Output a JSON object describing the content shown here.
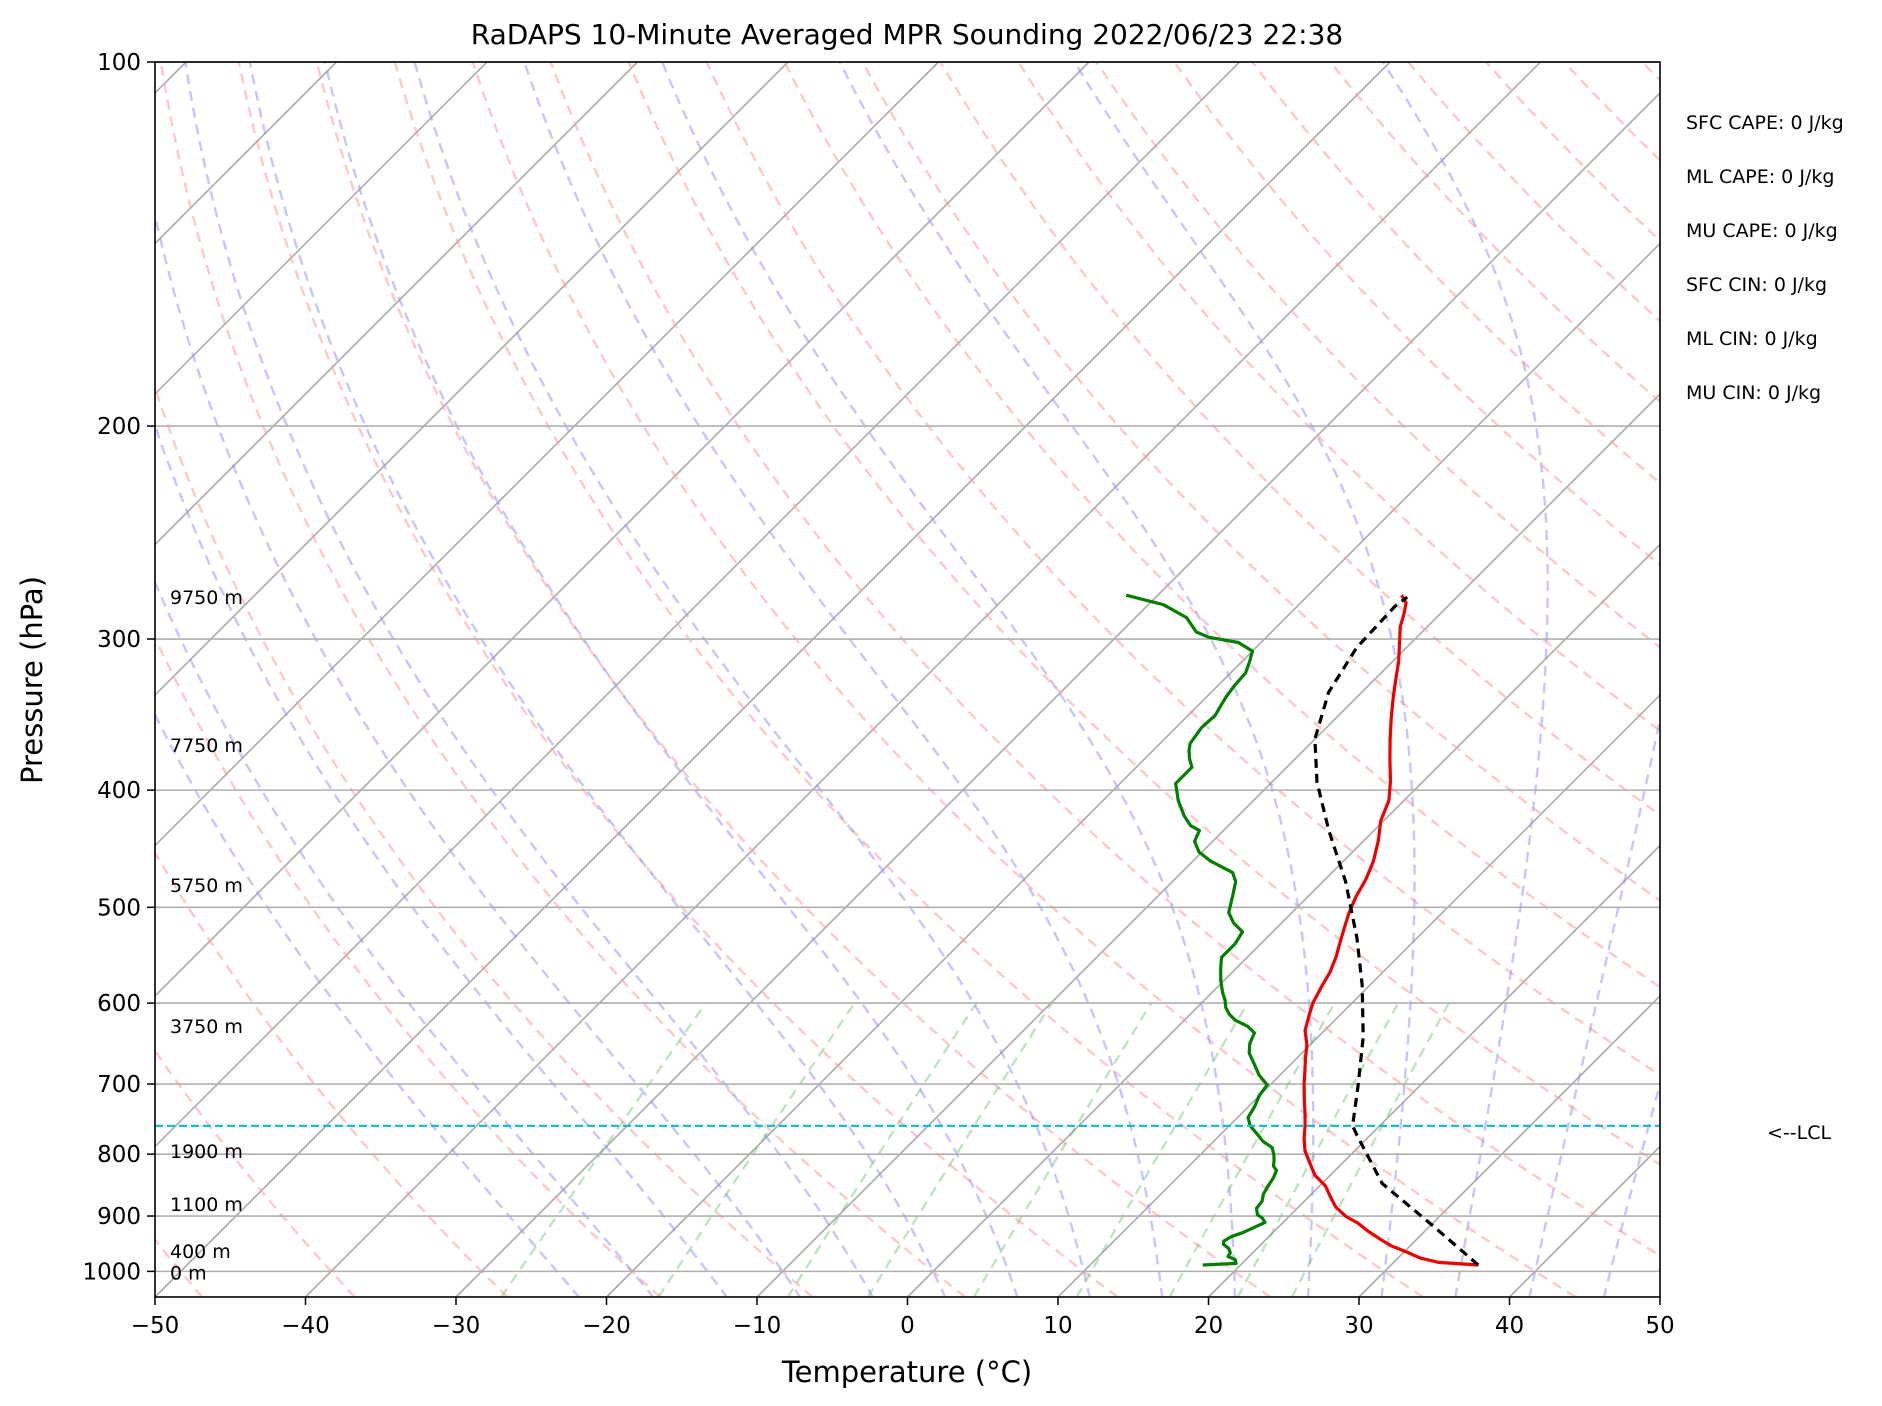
{
  "chart_data": {
    "type": "line",
    "title": "RaDAPS 10-Minute Averaged MPR Sounding 2022/06/23 22:38",
    "xlabel": "Temperature (°C)",
    "ylabel": "Pressure (hPa)",
    "xlim": [
      -50,
      50
    ],
    "ylim": [
      1050,
      100
    ],
    "y_scale": "log",
    "skew": "skew-T",
    "grid": true,
    "x_ticks": [
      "−50",
      "−40",
      "−30",
      "−20",
      "−10",
      "0",
      "10",
      "20",
      "30",
      "40",
      "50"
    ],
    "y_ticks": [
      {
        "p": 100,
        "label": "100"
      },
      {
        "p": 200,
        "label": "200"
      },
      {
        "p": 300,
        "label": "300"
      },
      {
        "p": 400,
        "label": "400"
      },
      {
        "p": 500,
        "label": "500"
      },
      {
        "p": 600,
        "label": "600"
      },
      {
        "p": 700,
        "label": "700"
      },
      {
        "p": 800,
        "label": "800"
      },
      {
        "p": 900,
        "label": "900"
      },
      {
        "p": 1000,
        "label": "1000"
      }
    ],
    "height_labels": [
      {
        "p": 277,
        "label": "9750 m"
      },
      {
        "p": 367,
        "label": "7750 m"
      },
      {
        "p": 479,
        "label": "5750 m"
      },
      {
        "p": 627,
        "label": "3750 m"
      },
      {
        "p": 795,
        "label": "1900 m"
      },
      {
        "p": 880,
        "label": "1100 m"
      },
      {
        "p": 962,
        "label": "400 m"
      },
      {
        "p": 1002,
        "label": "0 m"
      }
    ],
    "lcl": {
      "p": 758,
      "label": "<--LCL"
    },
    "stats": [
      {
        "label": "SFC CAPE: 0 J/kg"
      },
      {
        "label": "ML CAPE: 0 J/kg"
      },
      {
        "label": "MU CAPE: 0 J/kg"
      },
      {
        "label": "SFC CIN: 0 J/kg"
      },
      {
        "label": "ML CIN: 0 J/kg"
      },
      {
        "label": "MU CIN: 0 J/kg"
      }
    ],
    "series": [
      {
        "color": "#ee0000",
        "points": [
          [
            35.8,
            988
          ],
          [
            33.0,
            983
          ],
          [
            31.5,
            975
          ],
          [
            30.2,
            964
          ],
          [
            28.8,
            953
          ],
          [
            27.8,
            943
          ],
          [
            26.2,
            926
          ],
          [
            25.0,
            912
          ],
          [
            23.8,
            901
          ],
          [
            22.5,
            885
          ],
          [
            21.4,
            867
          ],
          [
            20.4,
            850
          ],
          [
            19.0,
            833
          ],
          [
            17.8,
            813
          ],
          [
            16.7,
            795
          ],
          [
            15.8,
            776
          ],
          [
            15.0,
            757
          ],
          [
            14.2,
            740
          ],
          [
            13.2,
            720
          ],
          [
            12.2,
            700
          ],
          [
            11.4,
            683
          ],
          [
            10.6,
            667
          ],
          [
            9.8,
            650
          ],
          [
            8.7,
            632
          ],
          [
            8.0,
            615
          ],
          [
            7.4,
            600
          ],
          [
            6.9,
            582
          ],
          [
            6.5,
            566
          ],
          [
            5.9,
            550
          ],
          [
            5.2,
            535
          ],
          [
            4.5,
            520
          ],
          [
            3.8,
            505
          ],
          [
            3.2,
            490
          ],
          [
            2.7,
            474
          ],
          [
            2.0,
            458
          ],
          [
            1.0,
            441
          ],
          [
            -0.2,
            424
          ],
          [
            -1.0,
            408
          ],
          [
            -2.2,
            393
          ],
          [
            -3.6,
            378
          ],
          [
            -5.0,
            363
          ],
          [
            -6.3,
            349
          ],
          [
            -7.5,
            336
          ],
          [
            -8.5,
            325
          ],
          [
            -9.6,
            313
          ],
          [
            -10.8,
            302
          ],
          [
            -11.8,
            293
          ],
          [
            -12.4,
            286
          ],
          [
            -13.0,
            280
          ],
          [
            -13.8,
            276
          ]
        ]
      },
      {
        "color": "#007f00",
        "points": [
          [
            17.5,
            988
          ],
          [
            19.6,
            985
          ],
          [
            19.3,
            978
          ],
          [
            18.6,
            972
          ],
          [
            18.5,
            965
          ],
          [
            18.1,
            957
          ],
          [
            17.5,
            950
          ],
          [
            17.3,
            944
          ],
          [
            17.5,
            936
          ],
          [
            18.0,
            929
          ],
          [
            18.8,
            911
          ],
          [
            18.3,
            903
          ],
          [
            17.8,
            898
          ],
          [
            17.3,
            887
          ],
          [
            17.2,
            875
          ],
          [
            16.8,
            863
          ],
          [
            16.6,
            851
          ],
          [
            16.4,
            837
          ],
          [
            16.1,
            825
          ],
          [
            15.6,
            818
          ],
          [
            15.3,
            810
          ],
          [
            14.9,
            801
          ],
          [
            14.3,
            790
          ],
          [
            13.3,
            781
          ],
          [
            12.5,
            771
          ],
          [
            11.4,
            758
          ],
          [
            10.7,
            746
          ],
          [
            10.4,
            730
          ],
          [
            10.0,
            716
          ],
          [
            9.8,
            701
          ],
          [
            8.6,
            688
          ],
          [
            7.5,
            673
          ],
          [
            6.5,
            660
          ],
          [
            5.9,
            648
          ],
          [
            5.5,
            635
          ],
          [
            4.6,
            627
          ],
          [
            3.4,
            620
          ],
          [
            2.6,
            613
          ],
          [
            1.9,
            605
          ],
          [
            1.4,
            597
          ],
          [
            0.7,
            588
          ],
          [
            -0.2,
            575
          ],
          [
            -1.0,
            562
          ],
          [
            -1.7,
            550
          ],
          [
            -1.7,
            536
          ],
          [
            -2.0,
            524
          ],
          [
            -3.2,
            515
          ],
          [
            -4.2,
            505
          ],
          [
            -5.0,
            490
          ],
          [
            -5.8,
            476
          ],
          [
            -6.6,
            468
          ],
          [
            -8.8,
            458
          ],
          [
            -10.2,
            450
          ],
          [
            -11.2,
            441
          ],
          [
            -11.6,
            432
          ],
          [
            -12.5,
            428
          ],
          [
            -13.6,
            420
          ],
          [
            -15.0,
            408
          ],
          [
            -16.3,
            395
          ],
          [
            -16.3,
            383
          ],
          [
            -17.0,
            377
          ],
          [
            -17.6,
            371
          ],
          [
            -18.0,
            366
          ],
          [
            -18.3,
            355
          ],
          [
            -18.2,
            347
          ],
          [
            -18.5,
            340
          ],
          [
            -18.7,
            335
          ],
          [
            -18.9,
            328
          ],
          [
            -19.0,
            320
          ],
          [
            -19.5,
            313
          ],
          [
            -20.0,
            307
          ],
          [
            -21.5,
            302
          ],
          [
            -23.8,
            299
          ],
          [
            -25.0,
            296
          ],
          [
            -26.6,
            288
          ],
          [
            -29.0,
            281
          ],
          [
            -32.1,
            276
          ]
        ]
      },
      {
        "color": "#000000",
        "dashed": true,
        "points": [
          [
            35.8,
            988
          ],
          [
            30.2,
            917
          ],
          [
            24.0,
            846
          ],
          [
            19.0,
            770
          ],
          [
            18.2,
            758
          ],
          [
            15.8,
            700
          ],
          [
            13.0,
            640
          ],
          [
            9.5,
            580
          ],
          [
            6.0,
            530
          ],
          [
            1.5,
            476
          ],
          [
            -3.0,
            432
          ],
          [
            -7.0,
            394
          ],
          [
            -10.0,
            363
          ],
          [
            -12.2,
            332
          ],
          [
            -13.3,
            305
          ],
          [
            -13.5,
            282
          ],
          [
            -13.3,
            277
          ]
        ]
      }
    ]
  }
}
